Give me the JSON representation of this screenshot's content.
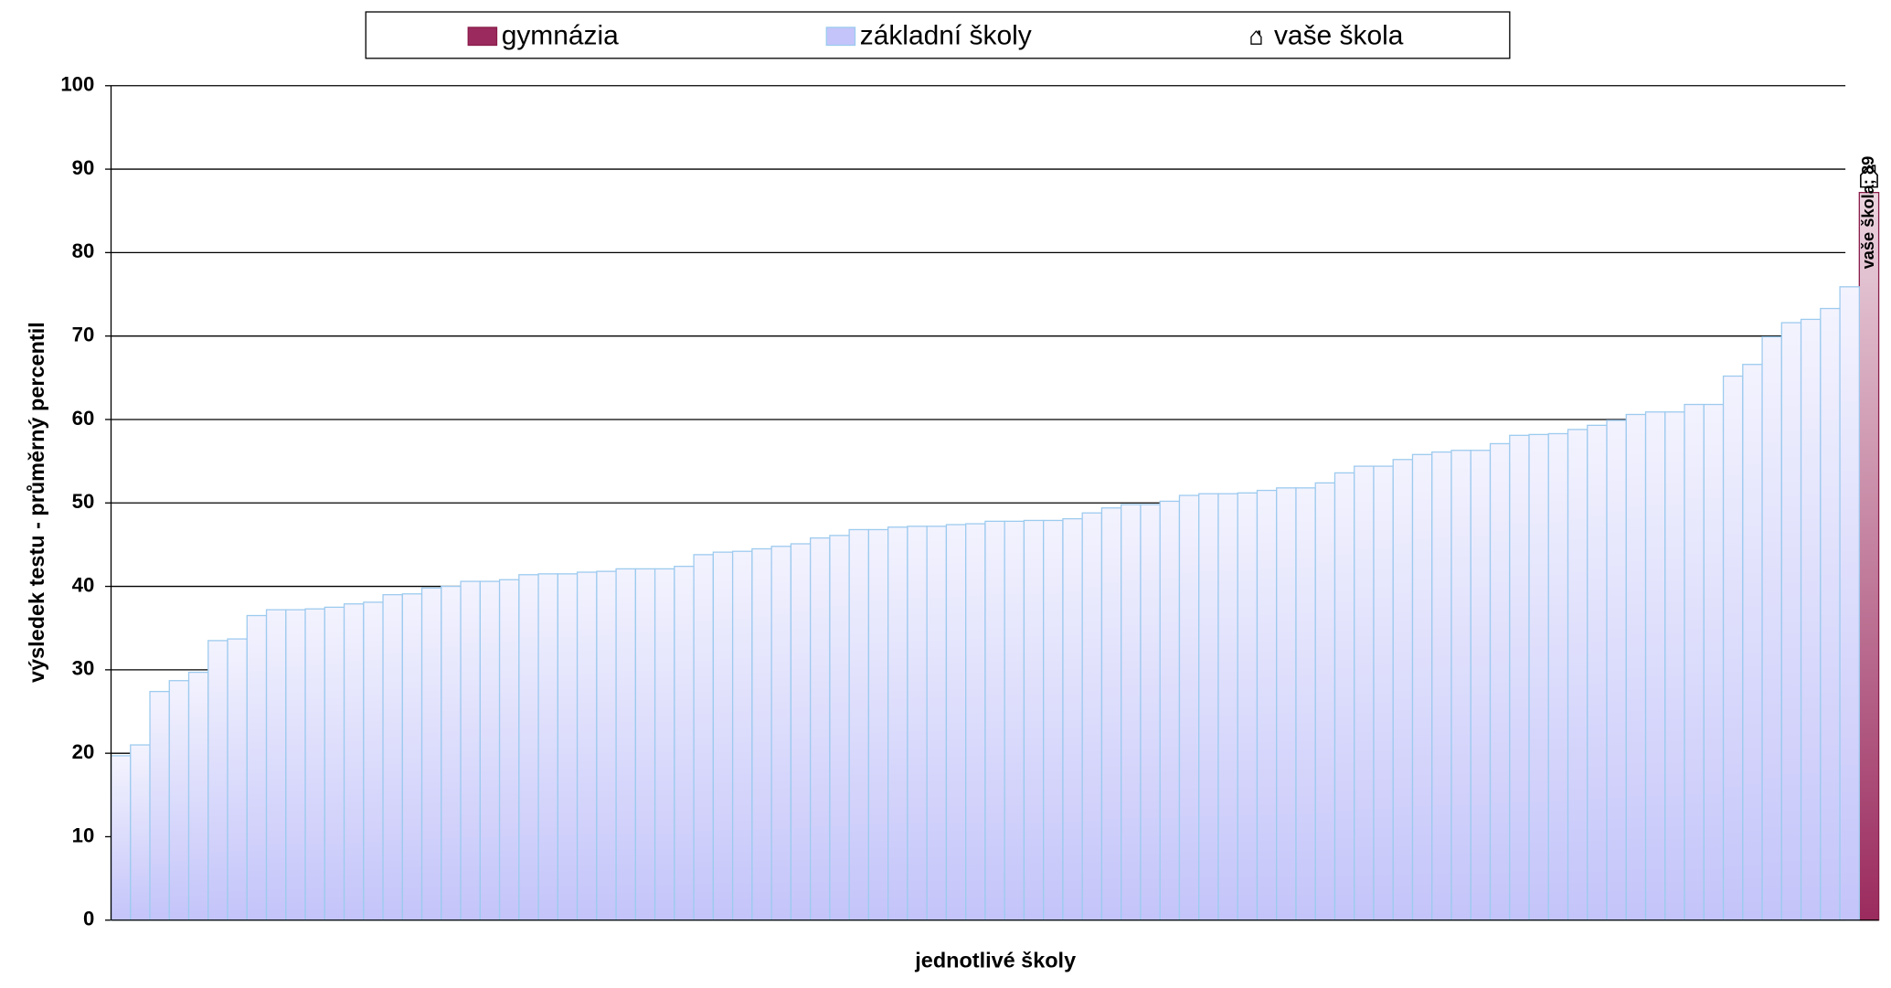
{
  "chart_data": {
    "type": "bar",
    "y_label": "výsledek testu - průměrný percentil",
    "x_label": "jednotlivé školy",
    "categories": [
      null,
      null,
      null,
      null,
      null,
      null,
      null,
      null,
      null,
      null,
      null,
      null,
      null,
      null,
      null,
      null,
      null,
      null,
      null,
      null,
      null,
      null,
      null,
      null,
      null,
      null,
      null,
      null,
      null,
      null,
      null,
      null,
      null,
      null,
      null,
      null,
      null,
      null,
      null,
      null,
      null,
      null,
      null,
      null,
      null,
      null,
      null,
      null,
      null,
      null,
      null,
      null,
      null,
      null,
      null,
      null,
      null,
      null,
      null,
      null,
      null,
      null,
      null,
      null,
      null,
      null,
      null,
      null,
      null,
      null,
      null,
      null,
      null,
      null,
      null,
      null,
      null,
      null,
      null,
      null,
      null,
      null,
      null,
      null,
      null,
      null,
      null,
      null,
      null,
      null,
      null
    ],
    "series": [
      {
        "name": "gymnázia",
        "color": "#9b2b5e",
        "values": [
          null,
          null,
          null,
          null,
          null,
          null,
          null,
          null,
          null,
          null,
          null,
          null,
          null,
          null,
          null,
          null,
          null,
          null,
          null,
          null,
          null,
          null,
          null,
          null,
          null,
          null,
          null,
          null,
          null,
          null,
          null,
          null,
          null,
          null,
          null,
          null,
          null,
          null,
          null,
          null,
          null,
          null,
          null,
          null,
          null,
          null,
          null,
          null,
          null,
          null,
          null,
          null,
          null,
          null,
          null,
          null,
          null,
          null,
          null,
          null,
          null,
          null,
          null,
          null,
          null,
          null,
          null,
          null,
          null,
          null,
          null,
          null,
          null,
          null,
          null,
          null,
          null,
          null,
          null,
          null,
          null,
          null,
          null,
          null,
          null,
          null,
          null,
          null,
          null,
          null,
          87.2
        ]
      },
      {
        "name": "základní školy",
        "color": "#c4c4fa",
        "values": [
          19.7,
          21,
          27.4,
          28.7,
          29.7,
          33.5,
          33.7,
          36.5,
          37.2,
          37.2,
          37.3,
          37.5,
          37.9,
          38.1,
          39,
          39.1,
          39.8,
          40,
          40.6,
          40.6,
          40.8,
          41.4,
          41.5,
          41.5,
          41.7,
          41.8,
          42.1,
          42.1,
          42.1,
          42.4,
          43.8,
          44.1,
          44.2,
          44.5,
          44.8,
          45.1,
          45.8,
          46.1,
          46.8,
          46.8,
          47.1,
          47.2,
          47.2,
          47.4,
          47.5,
          47.8,
          47.8,
          47.9,
          47.9,
          48.1,
          48.8,
          49.4,
          49.8,
          49.8,
          50.2,
          50.9,
          51.1,
          51.1,
          51.2,
          51.5,
          51.8,
          51.8,
          52.4,
          53.6,
          54.4,
          54.4,
          55.2,
          55.8,
          56.1,
          56.3,
          56.3,
          57.1,
          58.1,
          58.2,
          58.3,
          58.8,
          59.3,
          59.9,
          60.6,
          60.9,
          60.9,
          61.8,
          61.8,
          65.2,
          66.6,
          69.9,
          71.6,
          72,
          73.3,
          75.9,
          null
        ]
      },
      {
        "name": "vaše škola",
        "color": "#000000",
        "values": [
          null,
          null,
          null,
          null,
          null,
          null,
          null,
          null,
          null,
          null,
          null,
          null,
          null,
          null,
          null,
          null,
          null,
          null,
          null,
          null,
          null,
          null,
          null,
          null,
          null,
          null,
          null,
          null,
          null,
          null,
          null,
          null,
          null,
          null,
          null,
          null,
          null,
          null,
          null,
          null,
          null,
          null,
          null,
          null,
          null,
          null,
          null,
          null,
          null,
          null,
          null,
          null,
          null,
          null,
          null,
          null,
          null,
          null,
          null,
          null,
          null,
          null,
          null,
          null,
          null,
          null,
          null,
          null,
          null,
          null,
          null,
          null,
          null,
          null,
          null,
          null,
          null,
          null,
          null,
          null,
          null,
          null,
          null,
          null,
          null,
          null,
          null,
          null,
          null,
          null,
          89
        ],
        "value_labels": [
          null,
          null,
          null,
          null,
          null,
          null,
          null,
          null,
          null,
          null,
          null,
          null,
          null,
          null,
          null,
          null,
          null,
          null,
          null,
          null,
          null,
          null,
          null,
          null,
          null,
          null,
          null,
          null,
          null,
          null,
          null,
          null,
          null,
          null,
          null,
          null,
          null,
          null,
          null,
          null,
          null,
          null,
          null,
          null,
          null,
          null,
          null,
          null,
          null,
          null,
          null,
          null,
          null,
          null,
          null,
          null,
          null,
          null,
          null,
          null,
          null,
          null,
          null,
          null,
          null,
          null,
          null,
          null,
          null,
          null,
          null,
          null,
          null,
          null,
          null,
          null,
          null,
          null,
          null,
          null,
          null,
          null,
          null,
          null,
          null,
          null,
          null,
          null,
          null,
          null,
          "vaše škola; 89"
        ]
      }
    ],
    "ylim": [
      0,
      100
    ],
    "yticks": [
      0,
      10,
      20,
      30,
      40,
      50,
      60,
      70,
      80,
      90,
      100
    ],
    "grid": true
  }
}
